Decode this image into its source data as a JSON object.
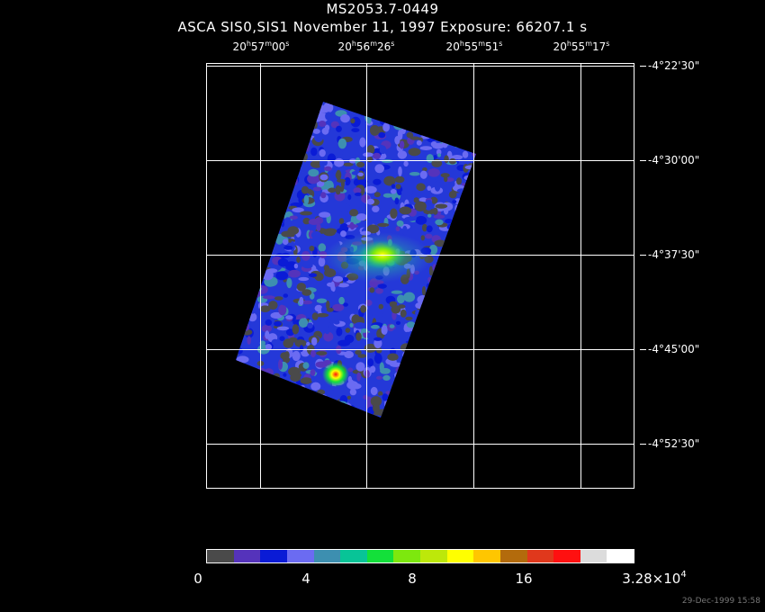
{
  "title": {
    "line1": "MS2053.7-0449",
    "line2": "ASCA SIS0,SIS1 November 11, 1997 Exposure: 66207.1 s"
  },
  "ra_axis": {
    "labels": [
      {
        "h": "20",
        "hs": "h",
        "m": "57",
        "ms": "m",
        "s": "00",
        "ss": "s"
      },
      {
        "h": "20",
        "hs": "h",
        "m": "56",
        "ms": "m",
        "s": "26",
        "ss": "s"
      },
      {
        "h": "20",
        "hs": "h",
        "m": "55",
        "ms": "m",
        "s": "51",
        "ss": "s"
      },
      {
        "h": "20",
        "hs": "h",
        "m": "55",
        "ms": "m",
        "s": "17",
        "ss": "s"
      }
    ]
  },
  "dec_axis": {
    "labels": [
      "-4°22'30\"",
      "-4°30'00\"",
      "-4°37'30\"",
      "-4°45'00\"",
      "-4°52'30\""
    ]
  },
  "colorbar": {
    "colors": [
      "#4a4a4a",
      "#5533bb",
      "#0a1bd6",
      "#6b6bf2",
      "#3d8fb0",
      "#08c497",
      "#13e03a",
      "#7de80e",
      "#bde80a",
      "#ffff00",
      "#ffc600",
      "#b36b0c",
      "#e0381c",
      "#ff1010",
      "#dcdcdc",
      "#ffffff"
    ],
    "labels": [
      {
        "text": "0"
      },
      {
        "text": "4"
      },
      {
        "text": "8"
      },
      {
        "text": "16"
      },
      {
        "text": "3.28×10",
        "exponent": "4"
      }
    ]
  },
  "timestamp": "29-Dec-1999 15:58"
}
